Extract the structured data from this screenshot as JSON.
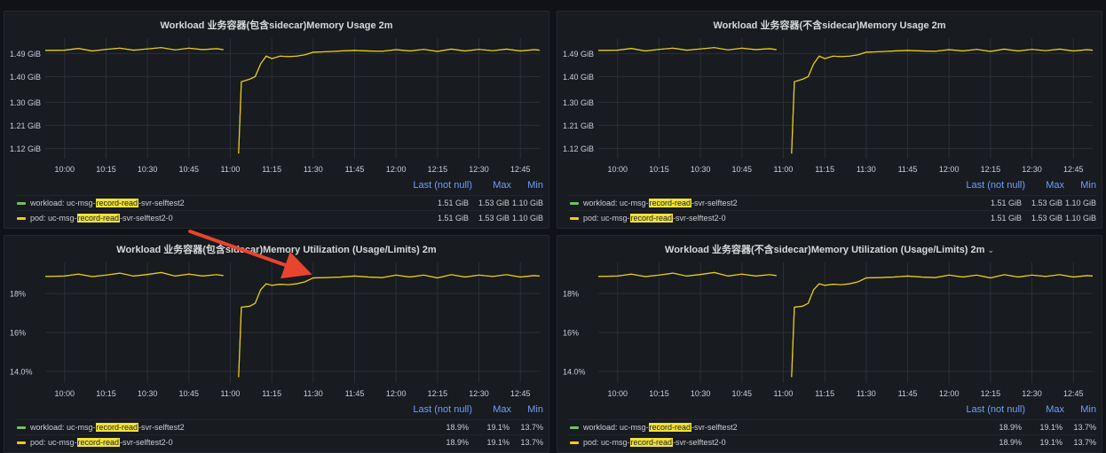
{
  "chart_data": [
    {
      "type": "line",
      "title": "Workload 业务容器(包含sidecar)Memory Usage 2m",
      "unit": "GiB",
      "y_ticks": [
        "1.49 GiB",
        "1.40 GiB",
        "1.30 GiB",
        "1.21 GiB",
        "1.12 GiB"
      ],
      "y_tick_values": [
        1.49,
        1.4,
        1.3,
        1.21,
        1.12
      ],
      "ylim": [
        1.08,
        1.55
      ],
      "x_ticks": [
        "10:00",
        "10:15",
        "10:30",
        "10:45",
        "11:00",
        "11:15",
        "11:30",
        "11:45",
        "12:00",
        "12:15",
        "12:30",
        "12:45"
      ],
      "x_tick_minutes": [
        600,
        615,
        630,
        645,
        660,
        675,
        690,
        705,
        720,
        735,
        750,
        765
      ],
      "xlim": [
        593,
        772
      ],
      "grid": true,
      "legend_headers": {
        "last": "Last (not null)",
        "max": "Max",
        "min": "Min"
      },
      "legend_placement": "bottom",
      "series": [
        {
          "name_prefix": "workload: uc-msg-",
          "name_highlight": "record-read",
          "name_suffix": "-svr-selftest2",
          "color": "#73bf69",
          "last": "1.51 GiB",
          "max": "1.53 GiB",
          "min": "1.10 GiB"
        },
        {
          "name_prefix": "pod: uc-msg-",
          "name_highlight": "record-read",
          "name_suffix": "-svr-selftest2-0",
          "color": "#f2cc0c",
          "last": "1.51 GiB",
          "max": "1.53 GiB",
          "min": "1.10 GiB"
        }
      ],
      "line_points": [
        [
          593,
          1.502
        ],
        [
          600,
          1.503
        ],
        [
          605,
          1.51
        ],
        [
          610,
          1.5
        ],
        [
          615,
          1.506
        ],
        [
          620,
          1.511
        ],
        [
          625,
          1.503
        ],
        [
          630,
          1.508
        ],
        [
          635,
          1.513
        ],
        [
          640,
          1.504
        ],
        [
          645,
          1.511
        ],
        [
          650,
          1.505
        ],
        [
          655,
          1.509
        ],
        [
          657.5,
          1.505
        ],
        [
          657.5,
          null
        ],
        [
          663,
          1.1
        ],
        [
          664,
          1.38
        ],
        [
          667,
          1.39
        ],
        [
          669,
          1.4
        ],
        [
          671,
          1.45
        ],
        [
          673,
          1.48
        ],
        [
          675,
          1.47
        ],
        [
          678,
          1.48
        ],
        [
          681,
          1.478
        ],
        [
          684,
          1.48
        ],
        [
          687,
          1.485
        ],
        [
          690,
          1.495
        ],
        [
          695,
          1.497
        ],
        [
          700,
          1.5
        ],
        [
          705,
          1.502
        ],
        [
          710,
          1.5
        ],
        [
          715,
          1.499
        ],
        [
          720,
          1.505
        ],
        [
          725,
          1.5
        ],
        [
          730,
          1.506
        ],
        [
          735,
          1.498
        ],
        [
          740,
          1.507
        ],
        [
          745,
          1.5
        ],
        [
          750,
          1.506
        ],
        [
          755,
          1.501
        ],
        [
          760,
          1.507
        ],
        [
          765,
          1.5
        ],
        [
          770,
          1.505
        ],
        [
          772,
          1.503
        ]
      ]
    },
    {
      "type": "line",
      "title": "Workload 业务容器(不含sidecar)Memory Usage 2m",
      "unit": "GiB",
      "y_ticks": [
        "1.49 GiB",
        "1.40 GiB",
        "1.30 GiB",
        "1.21 GiB",
        "1.12 GiB"
      ],
      "y_tick_values": [
        1.49,
        1.4,
        1.3,
        1.21,
        1.12
      ],
      "ylim": [
        1.08,
        1.55
      ],
      "x_ticks": [
        "10:00",
        "10:15",
        "10:30",
        "10:45",
        "11:00",
        "11:15",
        "11:30",
        "11:45",
        "12:00",
        "12:15",
        "12:30",
        "12:45"
      ],
      "x_tick_minutes": [
        600,
        615,
        630,
        645,
        660,
        675,
        690,
        705,
        720,
        735,
        750,
        765
      ],
      "xlim": [
        593,
        772
      ],
      "grid": true,
      "legend_headers": {
        "last": "Last (not null)",
        "max": "Max",
        "min": "Min"
      },
      "legend_placement": "bottom",
      "series": [
        {
          "name_prefix": "workload: uc-msg-",
          "name_highlight": "record-read",
          "name_suffix": "-svr-selftest2",
          "color": "#73bf69",
          "last": "1.51 GiB",
          "max": "1.53 GiB",
          "min": "1.10 GiB"
        },
        {
          "name_prefix": "pod: uc-msg-",
          "name_highlight": "record-read",
          "name_suffix": "-svr-selftest2-0",
          "color": "#f2cc0c",
          "last": "1.51 GiB",
          "max": "1.53 GiB",
          "min": "1.10 GiB"
        }
      ],
      "line_points": [
        [
          593,
          1.502
        ],
        [
          600,
          1.503
        ],
        [
          605,
          1.51
        ],
        [
          610,
          1.5
        ],
        [
          615,
          1.506
        ],
        [
          620,
          1.511
        ],
        [
          625,
          1.503
        ],
        [
          630,
          1.508
        ],
        [
          635,
          1.513
        ],
        [
          640,
          1.504
        ],
        [
          645,
          1.511
        ],
        [
          650,
          1.505
        ],
        [
          655,
          1.509
        ],
        [
          657.5,
          1.505
        ],
        [
          657.5,
          null
        ],
        [
          663,
          1.1
        ],
        [
          664,
          1.38
        ],
        [
          667,
          1.39
        ],
        [
          669,
          1.4
        ],
        [
          671,
          1.45
        ],
        [
          673,
          1.48
        ],
        [
          675,
          1.47
        ],
        [
          678,
          1.48
        ],
        [
          681,
          1.478
        ],
        [
          684,
          1.48
        ],
        [
          687,
          1.485
        ],
        [
          690,
          1.495
        ],
        [
          695,
          1.497
        ],
        [
          700,
          1.5
        ],
        [
          705,
          1.502
        ],
        [
          710,
          1.5
        ],
        [
          715,
          1.499
        ],
        [
          720,
          1.505
        ],
        [
          725,
          1.5
        ],
        [
          730,
          1.506
        ],
        [
          735,
          1.498
        ],
        [
          740,
          1.507
        ],
        [
          745,
          1.5
        ],
        [
          750,
          1.506
        ],
        [
          755,
          1.501
        ],
        [
          760,
          1.507
        ],
        [
          765,
          1.5
        ],
        [
          770,
          1.505
        ],
        [
          772,
          1.503
        ]
      ]
    },
    {
      "type": "line",
      "title": "Workload 业务容器(包含sidecar)Memory Utilization (Usage/Limits) 2m",
      "unit": "%",
      "y_ticks": [
        "18%",
        "16%",
        "14.0%"
      ],
      "y_tick_values": [
        18,
        16,
        14
      ],
      "ylim": [
        13.4,
        19.6
      ],
      "x_ticks": [
        "10:00",
        "10:15",
        "10:30",
        "10:45",
        "11:00",
        "11:15",
        "11:30",
        "11:45",
        "12:00",
        "12:15",
        "12:30",
        "12:45"
      ],
      "x_tick_minutes": [
        600,
        615,
        630,
        645,
        660,
        675,
        690,
        705,
        720,
        735,
        750,
        765
      ],
      "xlim": [
        593,
        772
      ],
      "grid": true,
      "legend_headers": {
        "last": "Last (not null)",
        "max": "Max",
        "min": "Min"
      },
      "legend_placement": "bottom",
      "series": [
        {
          "name_prefix": "workload: uc-msg-",
          "name_highlight": "record-read",
          "name_suffix": "-svr-selftest2",
          "color": "#73bf69",
          "last": "18.9%",
          "max": "19.1%",
          "min": "13.7%"
        },
        {
          "name_prefix": "pod: uc-msg-",
          "name_highlight": "record-read",
          "name_suffix": "-svr-selftest2-0",
          "color": "#f2cc0c",
          "last": "18.9%",
          "max": "19.1%",
          "min": "13.7%"
        }
      ],
      "line_points": [
        [
          593,
          18.88
        ],
        [
          600,
          18.9
        ],
        [
          605,
          19.0
        ],
        [
          610,
          18.87
        ],
        [
          615,
          18.95
        ],
        [
          620,
          19.05
        ],
        [
          625,
          18.9
        ],
        [
          630,
          18.98
        ],
        [
          635,
          19.08
        ],
        [
          640,
          18.9
        ],
        [
          645,
          19.0
        ],
        [
          650,
          18.9
        ],
        [
          655,
          18.97
        ],
        [
          657.5,
          18.92
        ],
        [
          657.5,
          null
        ],
        [
          663,
          13.7
        ],
        [
          664,
          17.3
        ],
        [
          667,
          17.35
        ],
        [
          669,
          17.5
        ],
        [
          671,
          18.2
        ],
        [
          673,
          18.5
        ],
        [
          675,
          18.42
        ],
        [
          678,
          18.48
        ],
        [
          681,
          18.45
        ],
        [
          684,
          18.5
        ],
        [
          687,
          18.6
        ],
        [
          690,
          18.8
        ],
        [
          695,
          18.82
        ],
        [
          700,
          18.85
        ],
        [
          705,
          18.9
        ],
        [
          710,
          18.85
        ],
        [
          715,
          18.82
        ],
        [
          720,
          18.95
        ],
        [
          725,
          18.85
        ],
        [
          730,
          18.95
        ],
        [
          735,
          18.8
        ],
        [
          740,
          18.97
        ],
        [
          745,
          18.85
        ],
        [
          750,
          18.95
        ],
        [
          755,
          18.88
        ],
        [
          760,
          18.97
        ],
        [
          765,
          18.85
        ],
        [
          770,
          18.92
        ],
        [
          772,
          18.9
        ]
      ]
    },
    {
      "type": "line",
      "title": "Workload 业务容器(不含sidecar)Memory Utilization (Usage/Limits) 2m",
      "title_suffix_icon": "chevron-down-icon",
      "unit": "%",
      "y_ticks": [
        "18%",
        "16%",
        "14.0%"
      ],
      "y_tick_values": [
        18,
        16,
        14
      ],
      "ylim": [
        13.4,
        19.6
      ],
      "x_ticks": [
        "10:00",
        "10:15",
        "10:30",
        "10:45",
        "11:00",
        "11:15",
        "11:30",
        "11:45",
        "12:00",
        "12:15",
        "12:30",
        "12:45"
      ],
      "x_tick_minutes": [
        600,
        615,
        630,
        645,
        660,
        675,
        690,
        705,
        720,
        735,
        750,
        765
      ],
      "xlim": [
        593,
        772
      ],
      "grid": true,
      "legend_headers": {
        "last": "Last (not null)",
        "max": "Max",
        "min": "Min"
      },
      "legend_placement": "bottom",
      "series": [
        {
          "name_prefix": "workload: uc-msg-",
          "name_highlight": "record-read",
          "name_suffix": "-svr-selftest2",
          "color": "#73bf69",
          "last": "18.9%",
          "max": "19.1%",
          "min": "13.7%"
        },
        {
          "name_prefix": "pod: uc-msg-",
          "name_highlight": "record-read",
          "name_suffix": "-svr-selftest2-0",
          "color": "#f2cc0c",
          "last": "18.9%",
          "max": "19.1%",
          "min": "13.7%"
        }
      ],
      "line_points": [
        [
          593,
          18.88
        ],
        [
          600,
          18.9
        ],
        [
          605,
          19.0
        ],
        [
          610,
          18.87
        ],
        [
          615,
          18.95
        ],
        [
          620,
          19.05
        ],
        [
          625,
          18.9
        ],
        [
          630,
          18.98
        ],
        [
          635,
          19.08
        ],
        [
          640,
          18.9
        ],
        [
          645,
          19.0
        ],
        [
          650,
          18.9
        ],
        [
          655,
          18.97
        ],
        [
          657.5,
          18.92
        ],
        [
          657.5,
          null
        ],
        [
          663,
          13.7
        ],
        [
          664,
          17.3
        ],
        [
          667,
          17.35
        ],
        [
          669,
          17.5
        ],
        [
          671,
          18.2
        ],
        [
          673,
          18.5
        ],
        [
          675,
          18.42
        ],
        [
          678,
          18.48
        ],
        [
          681,
          18.45
        ],
        [
          684,
          18.5
        ],
        [
          687,
          18.6
        ],
        [
          690,
          18.8
        ],
        [
          695,
          18.82
        ],
        [
          700,
          18.85
        ],
        [
          705,
          18.9
        ],
        [
          710,
          18.85
        ],
        [
          715,
          18.82
        ],
        [
          720,
          18.95
        ],
        [
          725,
          18.85
        ],
        [
          730,
          18.95
        ],
        [
          735,
          18.8
        ],
        [
          740,
          18.97
        ],
        [
          745,
          18.85
        ],
        [
          750,
          18.95
        ],
        [
          755,
          18.88
        ],
        [
          760,
          18.97
        ],
        [
          765,
          18.85
        ],
        [
          770,
          18.92
        ],
        [
          772,
          18.9
        ]
      ]
    }
  ],
  "colors": {
    "background": "#111217",
    "panel": "#181b1f",
    "grid": "#2c2f36",
    "axis_text": "#ccccdc",
    "legend_header": "#6e9fff",
    "highlight": "#f2e23b",
    "annotation_arrow": "#e8442e"
  }
}
